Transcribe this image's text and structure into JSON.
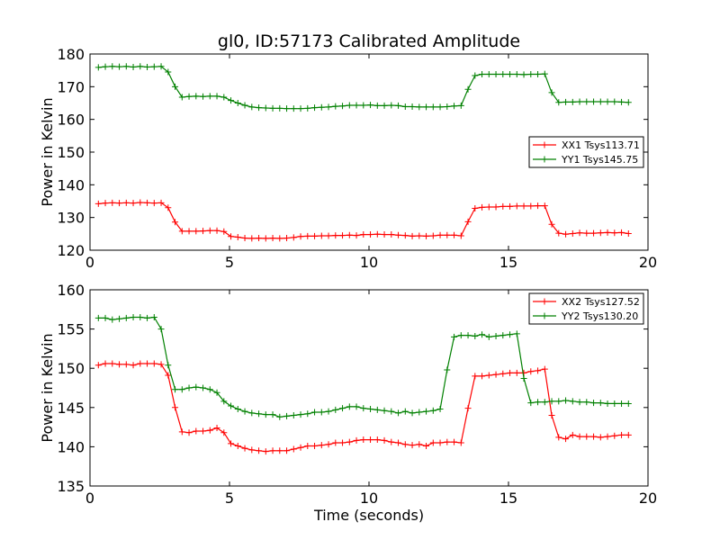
{
  "chart_data": [
    {
      "type": "line",
      "title": "gl0, ID:57173 Calibrated Amplitude",
      "xlabel": "",
      "ylabel": "Power in Kelvin",
      "xlim": [
        0,
        20
      ],
      "ylim": [
        120,
        180
      ],
      "xticks": [
        0,
        5,
        10,
        15,
        20
      ],
      "yticks": [
        120,
        130,
        140,
        150,
        160,
        170,
        180
      ],
      "grid": false,
      "legend_position": "center-right",
      "series": [
        {
          "name": "XX1 Tsys113.71",
          "color": "#ff0000",
          "x": [
            0.3,
            0.55,
            0.8,
            1.05,
            1.3,
            1.55,
            1.8,
            2.05,
            2.3,
            2.55,
            2.8,
            3.05,
            3.3,
            3.55,
            3.8,
            4.05,
            4.3,
            4.55,
            4.8,
            5.05,
            5.3,
            5.55,
            5.8,
            6.05,
            6.3,
            6.55,
            6.8,
            7.05,
            7.3,
            7.55,
            7.8,
            8.05,
            8.3,
            8.55,
            8.8,
            9.05,
            9.3,
            9.55,
            9.8,
            10.05,
            10.3,
            10.55,
            10.8,
            11.05,
            11.3,
            11.55,
            11.8,
            12.05,
            12.3,
            12.55,
            12.8,
            13.05,
            13.3,
            13.55,
            13.8,
            14.05,
            14.3,
            14.55,
            14.8,
            15.05,
            15.3,
            15.55,
            15.8,
            16.05,
            16.3,
            16.55,
            16.8,
            17.05,
            17.3,
            17.55,
            17.8,
            18.05,
            18.3,
            18.55,
            18.8,
            19.05,
            19.3
          ],
          "values": [
            134.2,
            134.4,
            134.5,
            134.4,
            134.5,
            134.4,
            134.6,
            134.5,
            134.4,
            134.5,
            133.0,
            128.6,
            125.8,
            125.8,
            125.8,
            125.9,
            126.0,
            126.0,
            125.7,
            124.2,
            124.0,
            123.7,
            123.6,
            123.7,
            123.6,
            123.7,
            123.6,
            123.7,
            123.9,
            124.2,
            124.3,
            124.3,
            124.4,
            124.4,
            124.5,
            124.5,
            124.6,
            124.5,
            124.8,
            124.8,
            124.9,
            124.8,
            124.8,
            124.6,
            124.5,
            124.3,
            124.4,
            124.3,
            124.4,
            124.6,
            124.6,
            124.6,
            124.4,
            128.7,
            132.8,
            133.1,
            133.2,
            133.2,
            133.4,
            133.4,
            133.5,
            133.5,
            133.5,
            133.6,
            133.6,
            127.9,
            125.2,
            124.9,
            125.1,
            125.3,
            125.2,
            125.2,
            125.3,
            125.4,
            125.3,
            125.4,
            125.1
          ]
        },
        {
          "name": "YY1 Tsys145.75",
          "color": "#008000",
          "x": [
            0.3,
            0.55,
            0.8,
            1.05,
            1.3,
            1.55,
            1.8,
            2.05,
            2.3,
            2.55,
            2.8,
            3.05,
            3.3,
            3.55,
            3.8,
            4.05,
            4.3,
            4.55,
            4.8,
            5.05,
            5.3,
            5.55,
            5.8,
            6.05,
            6.3,
            6.55,
            6.8,
            7.05,
            7.3,
            7.55,
            7.8,
            8.05,
            8.3,
            8.55,
            8.8,
            9.05,
            9.3,
            9.55,
            9.8,
            10.05,
            10.3,
            10.55,
            10.8,
            11.05,
            11.3,
            11.55,
            11.8,
            12.05,
            12.3,
            12.55,
            12.8,
            13.05,
            13.3,
            13.55,
            13.8,
            14.05,
            14.3,
            14.55,
            14.8,
            15.05,
            15.3,
            15.55,
            15.8,
            16.05,
            16.3,
            16.55,
            16.8,
            17.05,
            17.3,
            17.55,
            17.8,
            18.05,
            18.3,
            18.55,
            18.8,
            19.05,
            19.3
          ],
          "values": [
            175.9,
            176.1,
            176.2,
            176.1,
            176.2,
            176.0,
            176.2,
            176.0,
            176.1,
            176.2,
            174.5,
            170.0,
            166.8,
            167.0,
            167.1,
            167.0,
            167.1,
            167.1,
            166.8,
            165.8,
            165.0,
            164.3,
            163.8,
            163.6,
            163.5,
            163.4,
            163.4,
            163.3,
            163.3,
            163.3,
            163.4,
            163.6,
            163.7,
            163.8,
            164.0,
            164.1,
            164.3,
            164.3,
            164.3,
            164.4,
            164.2,
            164.2,
            164.3,
            164.2,
            163.9,
            163.9,
            163.8,
            163.8,
            163.8,
            163.8,
            163.9,
            164.1,
            164.2,
            169.2,
            173.4,
            173.8,
            173.8,
            173.8,
            173.8,
            173.8,
            173.8,
            173.7,
            173.8,
            173.8,
            173.9,
            168.2,
            165.2,
            165.3,
            165.3,
            165.4,
            165.4,
            165.4,
            165.4,
            165.4,
            165.4,
            165.3,
            165.2
          ]
        }
      ]
    },
    {
      "type": "line",
      "title": "",
      "xlabel": "Time (seconds)",
      "ylabel": "Power in Kelvin",
      "xlim": [
        0,
        20
      ],
      "ylim": [
        135,
        160
      ],
      "xticks": [
        0,
        5,
        10,
        15,
        20
      ],
      "yticks": [
        135,
        140,
        145,
        150,
        155,
        160
      ],
      "grid": false,
      "legend_position": "top-right",
      "series": [
        {
          "name": "XX2 Tsys127.52",
          "color": "#ff0000",
          "x": [
            0.3,
            0.55,
            0.8,
            1.05,
            1.3,
            1.55,
            1.8,
            2.05,
            2.3,
            2.55,
            2.8,
            3.05,
            3.3,
            3.55,
            3.8,
            4.05,
            4.3,
            4.55,
            4.8,
            5.05,
            5.3,
            5.55,
            5.8,
            6.05,
            6.3,
            6.55,
            6.8,
            7.05,
            7.3,
            7.55,
            7.8,
            8.05,
            8.3,
            8.55,
            8.8,
            9.05,
            9.3,
            9.55,
            9.8,
            10.05,
            10.3,
            10.55,
            10.8,
            11.05,
            11.3,
            11.55,
            11.8,
            12.05,
            12.3,
            12.55,
            12.8,
            13.05,
            13.3,
            13.55,
            13.8,
            14.05,
            14.3,
            14.55,
            14.8,
            15.05,
            15.3,
            15.55,
            15.8,
            16.05,
            16.3,
            16.55,
            16.8,
            17.05,
            17.3,
            17.55,
            17.8,
            18.05,
            18.3,
            18.55,
            18.8,
            19.05,
            19.3
          ],
          "values": [
            150.4,
            150.6,
            150.6,
            150.5,
            150.5,
            150.4,
            150.6,
            150.6,
            150.6,
            150.5,
            149.1,
            145.0,
            141.9,
            141.8,
            142.0,
            142.0,
            142.1,
            142.4,
            141.8,
            140.4,
            140.1,
            139.8,
            139.6,
            139.5,
            139.4,
            139.5,
            139.5,
            139.5,
            139.7,
            139.9,
            140.1,
            140.1,
            140.2,
            140.3,
            140.5,
            140.5,
            140.6,
            140.8,
            140.9,
            140.9,
            140.9,
            140.8,
            140.6,
            140.5,
            140.3,
            140.2,
            140.3,
            140.1,
            140.5,
            140.5,
            140.6,
            140.6,
            140.5,
            144.9,
            149.0,
            149.0,
            149.1,
            149.2,
            149.3,
            149.4,
            149.4,
            149.4,
            149.6,
            149.7,
            149.9,
            144.0,
            141.2,
            141.0,
            141.5,
            141.3,
            141.3,
            141.3,
            141.2,
            141.3,
            141.4,
            141.5,
            141.5
          ]
        },
        {
          "name": "YY2 Tsys130.20",
          "color": "#008000",
          "x": [
            0.3,
            0.55,
            0.8,
            1.05,
            1.3,
            1.55,
            1.8,
            2.05,
            2.3,
            2.55,
            2.8,
            3.05,
            3.3,
            3.55,
            3.8,
            4.05,
            4.3,
            4.55,
            4.8,
            5.05,
            5.3,
            5.55,
            5.8,
            6.05,
            6.3,
            6.55,
            6.8,
            7.05,
            7.3,
            7.55,
            7.8,
            8.05,
            8.3,
            8.55,
            8.8,
            9.05,
            9.3,
            9.55,
            9.8,
            10.05,
            10.3,
            10.55,
            10.8,
            11.05,
            11.3,
            11.55,
            11.8,
            12.05,
            12.3,
            12.55,
            12.8,
            13.05,
            13.3,
            13.55,
            13.8,
            14.05,
            14.3,
            14.55,
            14.8,
            15.05,
            15.3,
            15.55,
            15.8,
            16.05,
            16.3,
            16.55,
            16.8,
            17.05,
            17.3,
            17.55,
            17.8,
            18.05,
            18.3,
            18.55,
            18.8,
            19.05,
            19.3
          ],
          "values": [
            156.4,
            156.4,
            156.2,
            156.3,
            156.4,
            156.5,
            156.5,
            156.4,
            156.5,
            155.0,
            150.4,
            147.3,
            147.3,
            147.5,
            147.6,
            147.5,
            147.3,
            146.9,
            145.8,
            145.2,
            144.8,
            144.5,
            144.3,
            144.2,
            144.1,
            144.1,
            143.8,
            143.9,
            144.0,
            144.1,
            144.2,
            144.4,
            144.4,
            144.5,
            144.7,
            144.9,
            145.1,
            145.1,
            144.9,
            144.8,
            144.7,
            144.6,
            144.5,
            144.3,
            144.5,
            144.3,
            144.4,
            144.5,
            144.6,
            144.8,
            149.8,
            154.0,
            154.2,
            154.2,
            154.1,
            154.3,
            154.0,
            154.1,
            154.2,
            154.3,
            154.4,
            148.7,
            145.6,
            145.7,
            145.7,
            145.8,
            145.8,
            145.9,
            145.8,
            145.7,
            145.7,
            145.6,
            145.6,
            145.5,
            145.5,
            145.5,
            145.5
          ]
        }
      ]
    }
  ]
}
